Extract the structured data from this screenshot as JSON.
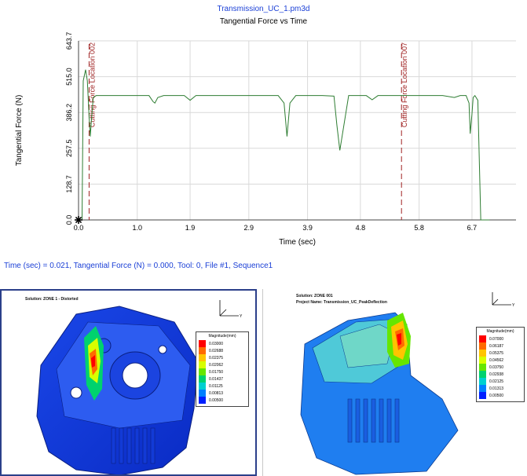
{
  "header": {
    "file_name": "Transmission_UC_1.pm3d",
    "chart_title": "Tangential Force vs Time"
  },
  "status_readout": "Time (sec) = 0.021,  Tangential Force (N) = 0.000,  Tool: 0,  File #1,  Sequence1",
  "chart_data": {
    "type": "line",
    "title": "Tangential Force vs Time",
    "xlabel": "Time (sec)",
    "ylabel": "Tangential Force (N)",
    "x_ticks": [
      "0.0",
      "1.0",
      "1.9",
      "2.9",
      "3.9",
      "4.8",
      "5.8",
      "6.7"
    ],
    "y_ticks": [
      "0.0",
      "128.7",
      "257.5",
      "386.2",
      "515.0",
      "643.7"
    ],
    "xlim": [
      0,
      7.45
    ],
    "ylim": [
      0,
      643.7
    ],
    "grid": true,
    "line_color": "#2e7d32",
    "series": [
      {
        "x": [
          0.0,
          0.06,
          0.08,
          0.12,
          0.15,
          0.18,
          0.2,
          0.22,
          0.25,
          0.3,
          1.2,
          1.27,
          1.3,
          1.35,
          1.45,
          1.8,
          1.9,
          2.0,
          2.3,
          3.4,
          3.5,
          3.55,
          3.6,
          3.7,
          4.15,
          4.35,
          4.4,
          4.45,
          4.6,
          4.9,
          5.0,
          5.1,
          5.4,
          6.2,
          6.4,
          6.5,
          6.6,
          6.65,
          6.67,
          6.7,
          6.72,
          6.75,
          6.8,
          6.85,
          7.0
        ],
        "y": [
          0,
          0,
          500,
          540,
          500,
          370,
          300,
          360,
          440,
          447,
          447,
          425,
          420,
          440,
          447,
          447,
          430,
          447,
          447,
          447,
          420,
          300,
          420,
          447,
          447,
          445,
          340,
          250,
          447,
          447,
          432,
          447,
          447,
          447,
          440,
          447,
          447,
          420,
          310,
          380,
          440,
          447,
          430,
          0,
          0
        ]
      }
    ],
    "markers": [
      {
        "label": "Cutting Force Location 002",
        "x": 0.18,
        "color": "#a02323"
      },
      {
        "label": "Cutting Force Location 007",
        "x": 5.5,
        "color": "#a02323"
      }
    ]
  },
  "views": {
    "left": {
      "solution": "Solution: ZONE 1 - Distorted",
      "legend_title": "Magnitude(mm)",
      "legend_values": [
        "0.03000",
        "0.02688",
        "0.02375",
        "0.02062",
        "0.01750",
        "0.01437",
        "0.01125",
        "0.00813",
        "0.00500"
      ]
    },
    "right": {
      "solution": "Solution: ZONE 001",
      "project": "Project Name: Transmission_UC_PeakDeflection",
      "legend_title": "Magnitude(mm)",
      "legend_values": [
        "0.07000",
        "0.06187",
        "0.05375",
        "0.04562",
        "0.03750",
        "0.02938",
        "0.02125",
        "0.01313",
        "0.00500"
      ]
    }
  },
  "legend_colors": [
    "#ff0000",
    "#ff6a00",
    "#ffc400",
    "#d8ff00",
    "#66e600",
    "#00d26e",
    "#00d0d0",
    "#0080ff",
    "#0020ff"
  ]
}
